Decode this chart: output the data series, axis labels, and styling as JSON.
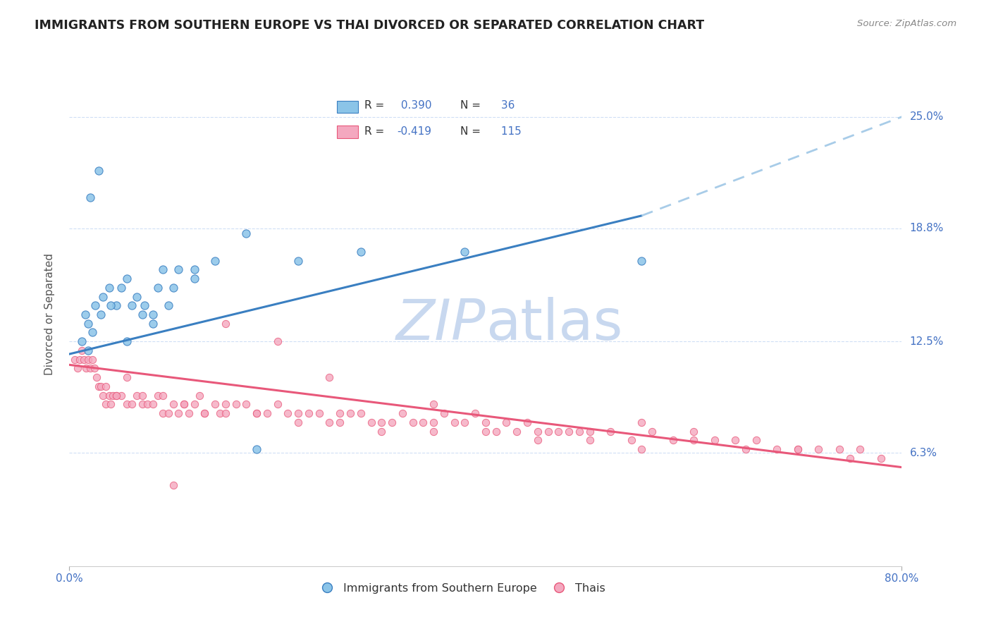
{
  "title": "IMMIGRANTS FROM SOUTHERN EUROPE VS THAI DIVORCED OR SEPARATED CORRELATION CHART",
  "source_text": "Source: ZipAtlas.com",
  "xlabel": "",
  "ylabel": "Divorced or Separated",
  "legend_label_1": "Immigrants from Southern Europe",
  "legend_label_2": "Thais",
  "r1": 0.39,
  "n1": 36,
  "r2": -0.419,
  "n2": 115,
  "xlim": [
    0.0,
    80.0
  ],
  "ylim": [
    0.0,
    28.0
  ],
  "yticks": [
    6.3,
    12.5,
    18.8,
    25.0
  ],
  "xticks": [
    0.0,
    80.0
  ],
  "color_blue": "#8bc4e8",
  "color_pink": "#f4a8bf",
  "color_blue_line": "#3a7fc1",
  "color_pink_line": "#e8587a",
  "color_dashed": "#a8cce8",
  "title_color": "#222222",
  "tick_color": "#4472C4",
  "grid_color": "#d0dff5",
  "watermark_color": "#c8d8ef",
  "background_color": "#ffffff",
  "blue_line_x0": 0.0,
  "blue_line_y0": 11.8,
  "blue_line_x1": 55.0,
  "blue_line_y1": 19.5,
  "blue_dash_x0": 55.0,
  "blue_dash_y0": 19.5,
  "blue_dash_x1": 80.0,
  "blue_dash_y1": 25.0,
  "pink_line_x0": 0.0,
  "pink_line_y0": 11.2,
  "pink_line_x1": 80.0,
  "pink_line_y1": 5.5,
  "blue_scatter_x": [
    2.0,
    2.8,
    1.5,
    1.8,
    2.5,
    3.2,
    3.8,
    4.5,
    5.0,
    5.5,
    6.0,
    6.5,
    7.2,
    8.0,
    8.5,
    9.0,
    9.5,
    10.5,
    12.0,
    14.0,
    17.0,
    22.0,
    28.0,
    38.0,
    55.0,
    1.2,
    1.8,
    2.2,
    3.0,
    4.0,
    5.5,
    7.0,
    8.0,
    10.0,
    12.0,
    18.0
  ],
  "blue_scatter_y": [
    20.5,
    22.0,
    14.0,
    13.5,
    14.5,
    15.0,
    15.5,
    14.5,
    15.5,
    16.0,
    14.5,
    15.0,
    14.5,
    14.0,
    15.5,
    16.5,
    14.5,
    16.5,
    16.0,
    17.0,
    18.5,
    17.0,
    17.5,
    17.5,
    17.0,
    12.5,
    12.0,
    13.0,
    14.0,
    14.5,
    12.5,
    14.0,
    13.5,
    15.5,
    16.5,
    6.5
  ],
  "pink_scatter_x": [
    0.5,
    0.8,
    1.0,
    1.2,
    1.4,
    1.6,
    1.8,
    2.0,
    2.2,
    2.4,
    2.6,
    2.8,
    3.0,
    3.2,
    3.5,
    3.8,
    4.0,
    4.2,
    4.5,
    5.0,
    5.5,
    6.0,
    6.5,
    7.0,
    7.5,
    8.0,
    8.5,
    9.0,
    9.5,
    10.0,
    10.5,
    11.0,
    11.5,
    12.0,
    12.5,
    13.0,
    14.0,
    14.5,
    15.0,
    16.0,
    17.0,
    18.0,
    19.0,
    20.0,
    21.0,
    22.0,
    23.0,
    24.0,
    25.0,
    26.0,
    27.0,
    28.0,
    29.0,
    30.0,
    31.0,
    32.0,
    33.0,
    34.0,
    35.0,
    36.0,
    37.0,
    38.0,
    39.0,
    40.0,
    41.0,
    42.0,
    43.0,
    44.0,
    45.0,
    46.0,
    47.0,
    48.0,
    49.0,
    50.0,
    52.0,
    54.0,
    56.0,
    58.0,
    60.0,
    62.0,
    64.0,
    66.0,
    68.0,
    70.0,
    72.0,
    74.0,
    76.0,
    78.0,
    3.5,
    4.5,
    5.5,
    7.0,
    9.0,
    11.0,
    13.0,
    15.0,
    18.0,
    22.0,
    26.0,
    30.0,
    35.0,
    40.0,
    45.0,
    50.0,
    55.0,
    60.0,
    65.0,
    70.0,
    75.0,
    55.0,
    35.0,
    25.0,
    20.0,
    15.0,
    10.0
  ],
  "pink_scatter_y": [
    11.5,
    11.0,
    11.5,
    12.0,
    11.5,
    11.0,
    11.5,
    11.0,
    11.5,
    11.0,
    10.5,
    10.0,
    10.0,
    9.5,
    9.0,
    9.5,
    9.0,
    9.5,
    9.5,
    9.5,
    9.0,
    9.0,
    9.5,
    9.0,
    9.0,
    9.0,
    9.5,
    8.5,
    8.5,
    9.0,
    8.5,
    9.0,
    8.5,
    9.0,
    9.5,
    8.5,
    9.0,
    8.5,
    9.0,
    9.0,
    9.0,
    8.5,
    8.5,
    9.0,
    8.5,
    8.5,
    8.5,
    8.5,
    8.0,
    8.5,
    8.5,
    8.5,
    8.0,
    8.0,
    8.0,
    8.5,
    8.0,
    8.0,
    8.0,
    8.5,
    8.0,
    8.0,
    8.5,
    8.0,
    7.5,
    8.0,
    7.5,
    8.0,
    7.5,
    7.5,
    7.5,
    7.5,
    7.5,
    7.5,
    7.5,
    7.0,
    7.5,
    7.0,
    7.5,
    7.0,
    7.0,
    7.0,
    6.5,
    6.5,
    6.5,
    6.5,
    6.5,
    6.0,
    10.0,
    9.5,
    10.5,
    9.5,
    9.5,
    9.0,
    8.5,
    8.5,
    8.5,
    8.0,
    8.0,
    7.5,
    7.5,
    7.5,
    7.0,
    7.0,
    6.5,
    7.0,
    6.5,
    6.5,
    6.0,
    8.0,
    9.0,
    10.5,
    12.5,
    13.5,
    4.5
  ]
}
